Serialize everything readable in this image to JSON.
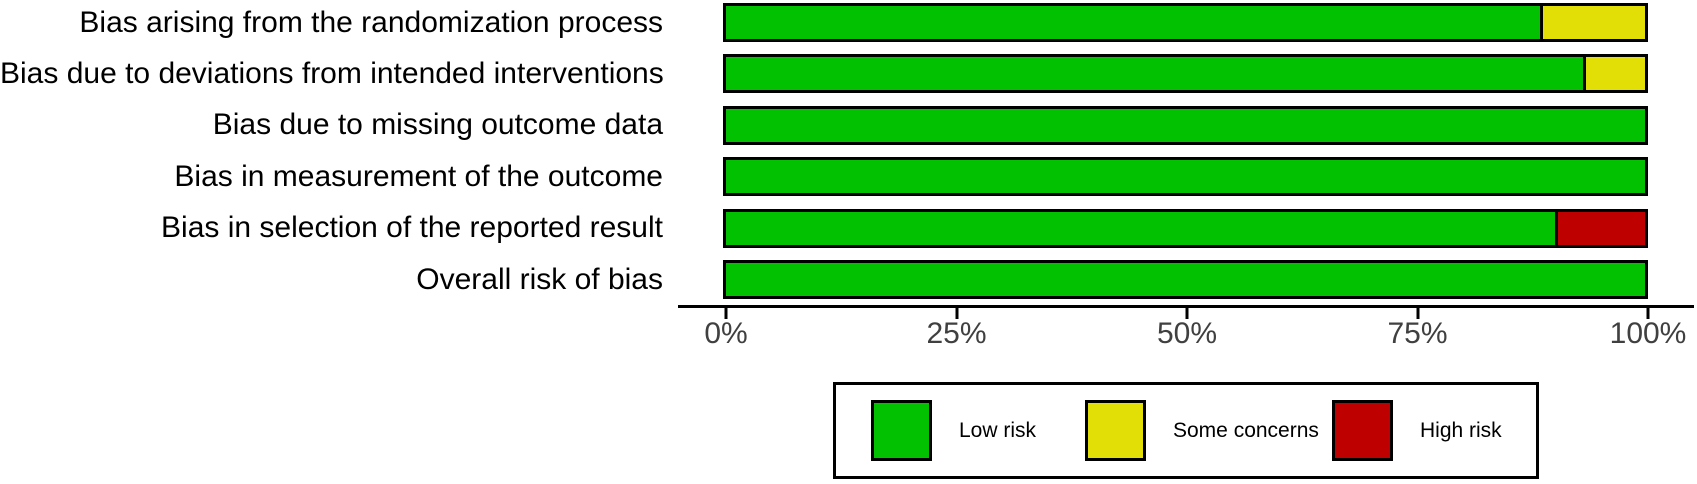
{
  "chart_data": {
    "type": "bar",
    "orientation": "horizontal",
    "stacked": true,
    "unit": "percent",
    "title": "",
    "xlabel": "",
    "ylabel": "",
    "xlim": [
      0,
      100
    ],
    "x_ticks": [
      "0%",
      "25%",
      "50%",
      "75%",
      "100%"
    ],
    "grid": false,
    "legend_position": "bottom",
    "categories": [
      "Bias arising from the randomization process",
      "Bias due to deviations from intended interventions",
      "Bias due to missing outcome data",
      "Bias in measurement of the outcome",
      "Bias in selection of the reported result",
      "Overall risk of bias"
    ],
    "series": [
      {
        "name": "Low risk",
        "color": "#02C100",
        "values": [
          88.6,
          93.2,
          100,
          100,
          90.2,
          100
        ]
      },
      {
        "name": "Some concerns",
        "color": "#E2DF07",
        "values": [
          11.4,
          6.8,
          0,
          0,
          0,
          0
        ]
      },
      {
        "name": "High risk",
        "color": "#BF0000",
        "values": [
          0,
          0,
          0,
          0,
          9.8,
          0
        ]
      }
    ],
    "legend": [
      "Low risk",
      "Some concerns",
      "High risk"
    ],
    "colors": {
      "bar_border": "#000000",
      "axis_line": "#000000",
      "tick_label": "#404040",
      "category_label": "#000000"
    }
  }
}
